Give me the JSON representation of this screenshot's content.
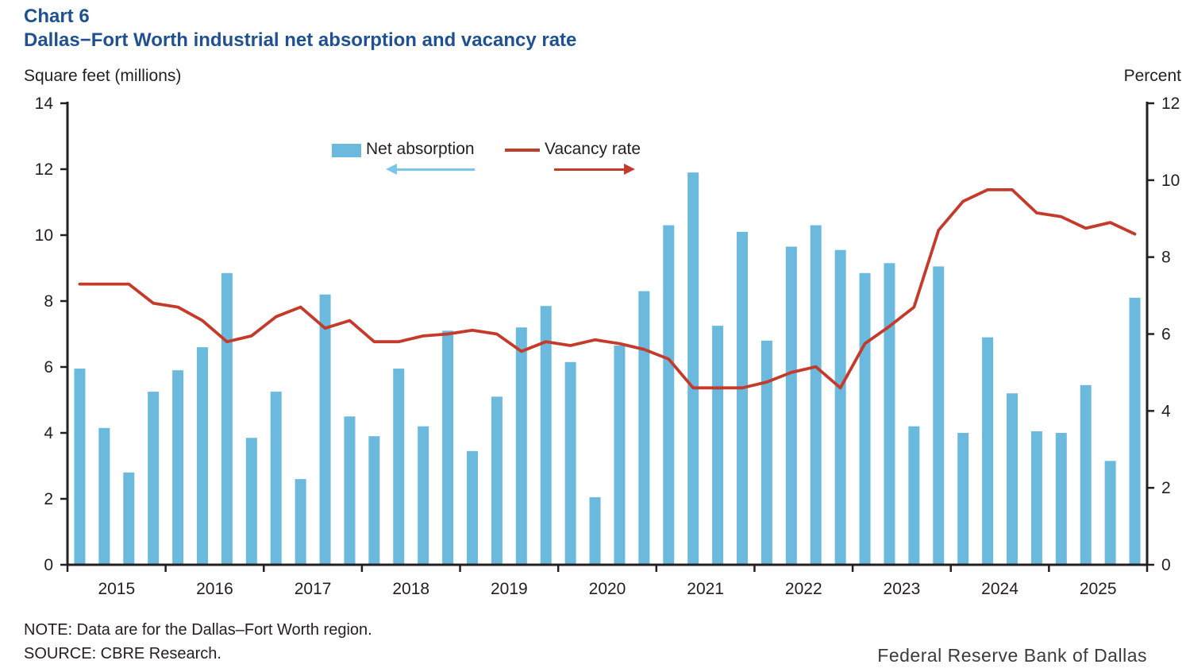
{
  "header": {
    "chart_label": "Chart 6",
    "title": "Dallas−Fort Worth industrial net absorption and vacancy rate"
  },
  "axes": {
    "left_unit_label": "Square feet (millions)",
    "right_unit_label": "Percent"
  },
  "legend": {
    "bar_label": "Net absorption",
    "line_label": "Vacancy rate"
  },
  "footer": {
    "note": "NOTE: Data are for the Dallas–Fort Worth region.",
    "source": "SOURCE: CBRE Research.",
    "attribution": "Federal Reserve Bank of Dallas"
  },
  "colors": {
    "title": "#1f5191",
    "bar": "#6bbade",
    "bar_arrow": "#7ec6e8",
    "line": "#c43b2b",
    "axis": "#231f20",
    "text": "#231f20"
  },
  "chart_data": {
    "type": "bar",
    "subtype": "bar+line dual axis, quarterly",
    "title": "Dallas−Fort Worth industrial net absorption and vacancy rate",
    "x_year_labels": [
      "2015",
      "2016",
      "2017",
      "2018",
      "2019",
      "2020",
      "2021",
      "2022",
      "2023",
      "2024",
      "2025"
    ],
    "categories": [
      "2015 Q1",
      "2015 Q2",
      "2015 Q3",
      "2015 Q4",
      "2016 Q1",
      "2016 Q2",
      "2016 Q3",
      "2016 Q4",
      "2017 Q1",
      "2017 Q2",
      "2017 Q3",
      "2017 Q4",
      "2018 Q1",
      "2018 Q2",
      "2018 Q3",
      "2018 Q4",
      "2019 Q1",
      "2019 Q2",
      "2019 Q3",
      "2019 Q4",
      "2020 Q1",
      "2020 Q2",
      "2020 Q3",
      "2020 Q4",
      "2021 Q1",
      "2021 Q2",
      "2021 Q3",
      "2021 Q4",
      "2022 Q1",
      "2022 Q2",
      "2022 Q3",
      "2022 Q4",
      "2023 Q1",
      "2023 Q2",
      "2023 Q3",
      "2023 Q4",
      "2024 Q1",
      "2024 Q2",
      "2024 Q3",
      "2024 Q4",
      "2025 Q1",
      "2025 Q2",
      "2025 Q3",
      "2025 Q4"
    ],
    "series": [
      {
        "name": "Net absorption",
        "type": "bar",
        "axis": "left",
        "unit": "million square feet",
        "values": [
          5.95,
          4.15,
          2.8,
          5.25,
          5.9,
          6.6,
          8.85,
          3.85,
          5.25,
          2.6,
          8.2,
          4.5,
          3.9,
          5.95,
          4.2,
          7.1,
          3.45,
          5.1,
          7.2,
          7.85,
          6.15,
          2.05,
          6.65,
          8.3,
          10.3,
          11.9,
          7.25,
          10.1,
          6.8,
          9.65,
          10.3,
          9.55,
          8.85,
          9.15,
          4.2,
          9.05,
          4.0,
          6.9,
          5.2,
          4.05,
          4.0,
          5.45,
          3.15,
          8.1
        ]
      },
      {
        "name": "Vacancy rate",
        "type": "line",
        "axis": "right",
        "unit": "percent",
        "values": [
          7.3,
          7.3,
          7.3,
          6.8,
          6.7,
          6.35,
          5.8,
          5.95,
          6.45,
          6.7,
          6.15,
          6.35,
          5.8,
          5.8,
          5.95,
          6.0,
          6.1,
          6.0,
          5.55,
          5.8,
          5.7,
          5.85,
          5.75,
          5.6,
          5.35,
          4.6,
          4.6,
          4.6,
          4.75,
          5.0,
          5.15,
          4.6,
          5.75,
          6.2,
          6.7,
          8.7,
          9.45,
          9.75,
          9.75,
          9.15,
          9.05,
          8.75,
          8.9,
          8.6
        ]
      }
    ],
    "left_axis": {
      "label": "Square feet (millions)",
      "min": 0,
      "max": 14,
      "tick_step": 2,
      "ticks": [
        0,
        2,
        4,
        6,
        8,
        10,
        12,
        14
      ]
    },
    "right_axis": {
      "label": "Percent",
      "min": 0,
      "max": 12,
      "tick_step": 2,
      "ticks": [
        0,
        2,
        4,
        6,
        8,
        10,
        12
      ]
    },
    "grid": false,
    "legend_position": "top-center-inside"
  }
}
